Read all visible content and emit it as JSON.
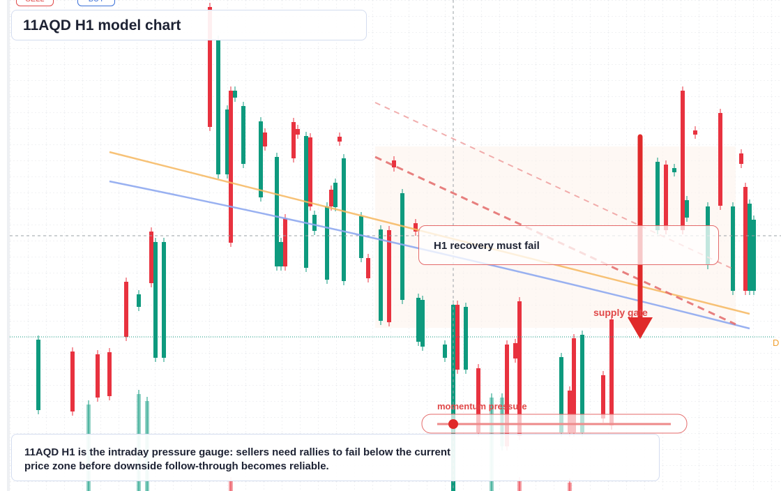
{
  "toolbar": {
    "sell": "SELL",
    "buy": "BUY"
  },
  "header": {
    "title": "11AQD H1 model chart"
  },
  "annotations": {
    "recovery": "H1 recovery must fail",
    "supply": "supply gate",
    "momentum": "momentum pressure",
    "edge_label": "D"
  },
  "footer": {
    "text": "11AQD H1 is the intraday pressure gauge: sellers need rallies to fail below the current price zone before downside follow-through becomes reliable."
  }
}
